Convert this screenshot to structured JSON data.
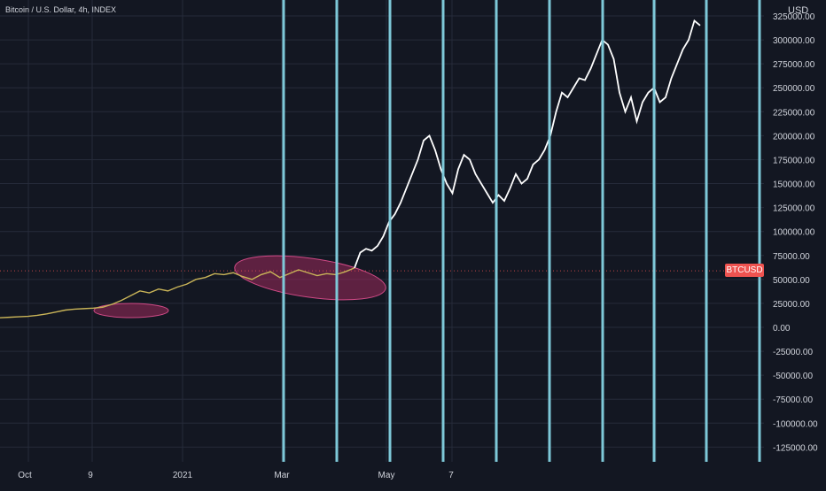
{
  "title": "Bitcoin / U.S. Dollar, 4h, INDEX",
  "y_unit": "USD",
  "price_tag": "BTCUSD",
  "colors": {
    "background": "#131722",
    "grid": "#262b3a",
    "vertical_lines": "#7ec8d8",
    "projection_line": "#ffffff",
    "history_line": "#c9b458",
    "ellipse_fill": "#9c2a5b",
    "ellipse_stroke": "#d04a86",
    "price_tag_bg": "#ef5350",
    "dashed_price_line": "#ef5350"
  },
  "chart_data": {
    "type": "line",
    "x_ticks": [
      "Oct",
      "9",
      "2021",
      "Mar",
      "May",
      "7"
    ],
    "y_ticks": [
      "325000.00",
      "300000.00",
      "275000.00",
      "250000.00",
      "225000.00",
      "200000.00",
      "175000.00",
      "150000.00",
      "125000.00",
      "100000.00",
      "75000.00",
      "50000.00",
      "25000.00",
      "0.00",
      "-25000.00",
      "-50000.00",
      "-75000.00",
      "-100000.00",
      "-125000.00"
    ],
    "ylim": [
      -145000,
      335000
    ],
    "current_price": 59000,
    "series": [
      {
        "values": [
          10000,
          10500,
          11000,
          11500,
          12500,
          14000,
          16000,
          18000,
          19000,
          19500,
          20000,
          21000,
          24000,
          28000,
          33000,
          38000,
          36000,
          40000,
          38000,
          42000,
          45000,
          50000,
          52000,
          56000,
          55000,
          57000,
          53000,
          50000,
          55000,
          58000,
          52000,
          56000,
          60000,
          57000,
          54000,
          56000,
          55000,
          58000,
          62000
        ]
      },
      {
        "values": [
          62000,
          78000,
          82000,
          80000,
          85000,
          95000,
          110000,
          118000,
          130000,
          145000,
          160000,
          175000,
          195000,
          200000,
          185000,
          165000,
          150000,
          140000,
          165000,
          180000,
          175000,
          160000,
          150000,
          140000,
          130000,
          138000,
          132000,
          145000,
          160000,
          150000,
          155000,
          170000,
          175000,
          185000,
          200000,
          225000,
          245000,
          240000,
          250000,
          260000,
          258000,
          270000,
          285000,
          300000,
          295000,
          280000,
          245000,
          225000,
          240000,
          215000,
          235000,
          245000,
          250000,
          235000,
          240000,
          260000,
          275000,
          290000,
          300000,
          320000,
          315000
        ]
      }
    ],
    "vertical_lines": 10,
    "highlight_ellipses": 2
  }
}
